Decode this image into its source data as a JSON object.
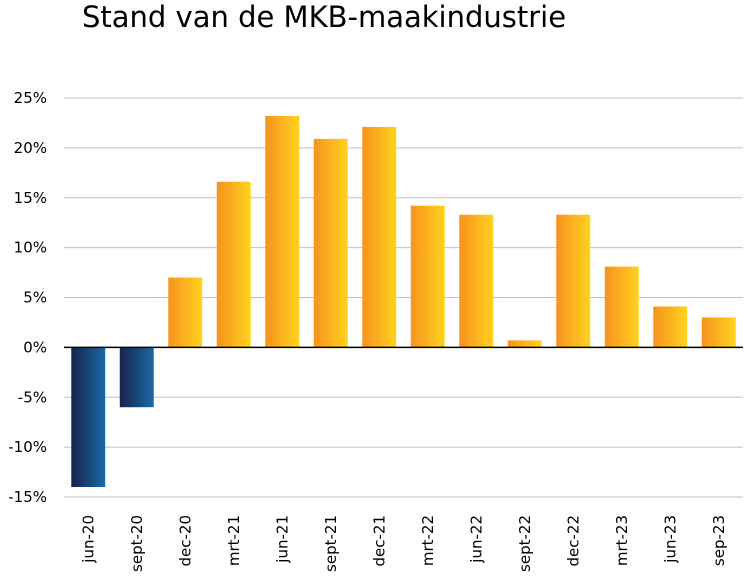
{
  "chart_data": {
    "type": "bar",
    "title": "Stand van de MKB-maakindustrie",
    "categories": [
      "jun-20",
      "sept-20",
      "dec-20",
      "mrt-21",
      "jun-21",
      "sept-21",
      "dec-21",
      "mrt-22",
      "jun-22",
      "sept-22",
      "dec-22",
      "mrt-23",
      "jun-23",
      "sep-23"
    ],
    "values": [
      -14.0,
      -6.0,
      7.0,
      16.6,
      23.2,
      20.9,
      22.1,
      14.2,
      13.3,
      0.7,
      13.3,
      8.1,
      4.1,
      3.0
    ],
    "ylim": [
      -15,
      25
    ],
    "yticks": [
      -15,
      -10,
      -5,
      0,
      5,
      10,
      15,
      20,
      25
    ],
    "ytick_labels": [
      "-15%",
      "-10%",
      "-5%",
      "0%",
      "5%",
      "10%",
      "15%",
      "20%",
      "25%"
    ],
    "grid": true,
    "legend": "none",
    "colors": {
      "positive_dark": "#f7931e",
      "positive_light": "#ffd21f",
      "negative_dark": "#17234a",
      "negative_light": "#1a6aa6",
      "grid": "#c0c0c0",
      "axis": "#000000"
    }
  }
}
